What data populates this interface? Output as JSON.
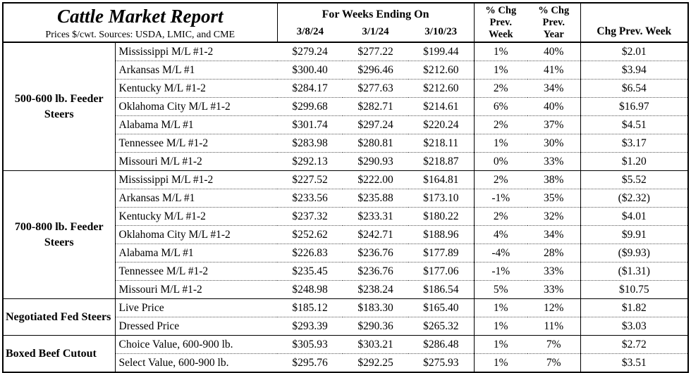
{
  "report": {
    "title": "Cattle Market Report",
    "subtitle": "Prices $/cwt. Sources: USDA, LMIC, and CME",
    "week_header": "For Weeks Ending On",
    "dates": [
      "3/8/24",
      "3/1/24",
      "3/10/23"
    ],
    "pct_week_header": "% Chg\nPrev.\nWeek",
    "pct_year_header": "% Chg\nPrev.\nYear",
    "chg_header": "Chg Prev. Week"
  },
  "groups": [
    {
      "label": "500-600 lb. Feeder Steers",
      "label_align": "center",
      "rows": [
        {
          "item": "Mississippi M/L #1-2",
          "w1": "$279.24",
          "w2": "$277.22",
          "w3": "$199.44",
          "pct_wk": "1%",
          "pct_yr": "40%",
          "chg": "$2.01"
        },
        {
          "item": "Arkansas M/L #1",
          "w1": "$300.40",
          "w2": "$296.46",
          "w3": "$212.60",
          "pct_wk": "1%",
          "pct_yr": "41%",
          "chg": "$3.94"
        },
        {
          "item": "Kentucky M/L #1-2",
          "w1": "$284.17",
          "w2": "$277.63",
          "w3": "$212.60",
          "pct_wk": "2%",
          "pct_yr": "34%",
          "chg": "$6.54"
        },
        {
          "item": "Oklahoma City M/L #1-2",
          "w1": "$299.68",
          "w2": "$282.71",
          "w3": "$214.61",
          "pct_wk": "6%",
          "pct_yr": "40%",
          "chg": "$16.97"
        },
        {
          "item": "Alabama M/L #1",
          "w1": "$301.74",
          "w2": "$297.24",
          "w3": "$220.24",
          "pct_wk": "2%",
          "pct_yr": "37%",
          "chg": "$4.51"
        },
        {
          "item": "Tennessee M/L #1-2",
          "w1": "$283.98",
          "w2": "$280.81",
          "w3": "$218.11",
          "pct_wk": "1%",
          "pct_yr": "30%",
          "chg": "$3.17"
        },
        {
          "item": "Missouri M/L #1-2",
          "w1": "$292.13",
          "w2": "$290.93",
          "w3": "$218.87",
          "pct_wk": "0%",
          "pct_yr": "33%",
          "chg": "$1.20"
        }
      ]
    },
    {
      "label": "700-800 lb. Feeder Steers",
      "label_align": "center",
      "rows": [
        {
          "item": "Mississippi M/L #1-2",
          "w1": "$227.52",
          "w2": "$222.00",
          "w3": "$164.81",
          "pct_wk": "2%",
          "pct_yr": "38%",
          "chg": "$5.52"
        },
        {
          "item": "Arkansas M/L #1",
          "w1": "$233.56",
          "w2": "$235.88",
          "w3": "$173.10",
          "pct_wk": "-1%",
          "pct_yr": "35%",
          "chg": "($2.32)"
        },
        {
          "item": "Kentucky M/L #1-2",
          "w1": "$237.32",
          "w2": "$233.31",
          "w3": "$180.22",
          "pct_wk": "2%",
          "pct_yr": "32%",
          "chg": "$4.01"
        },
        {
          "item": "Oklahoma City M/L #1-2",
          "w1": "$252.62",
          "w2": "$242.71",
          "w3": "$188.96",
          "pct_wk": "4%",
          "pct_yr": "34%",
          "chg": "$9.91"
        },
        {
          "item": "Alabama M/L #1",
          "w1": "$226.83",
          "w2": "$236.76",
          "w3": "$177.89",
          "pct_wk": "-4%",
          "pct_yr": "28%",
          "chg": "($9.93)"
        },
        {
          "item": "Tennessee M/L #1-2",
          "w1": "$235.45",
          "w2": "$236.76",
          "w3": "$177.06",
          "pct_wk": "-1%",
          "pct_yr": "33%",
          "chg": "($1.31)"
        },
        {
          "item": "Missouri M/L #1-2",
          "w1": "$248.98",
          "w2": "$238.24",
          "w3": "$186.54",
          "pct_wk": "5%",
          "pct_yr": "33%",
          "chg": "$10.75"
        }
      ]
    },
    {
      "label": "Negotiated Fed Steers",
      "label_align": "left",
      "rows": [
        {
          "item": "Live Price",
          "w1": "$185.12",
          "w2": "$183.30",
          "w3": "$165.40",
          "pct_wk": "1%",
          "pct_yr": "12%",
          "chg": "$1.82"
        },
        {
          "item": "Dressed Price",
          "w1": "$293.39",
          "w2": "$290.36",
          "w3": "$265.32",
          "pct_wk": "1%",
          "pct_yr": "11%",
          "chg": "$3.03"
        }
      ]
    },
    {
      "label": "Boxed Beef Cutout",
      "label_align": "left",
      "rows": [
        {
          "item": "Choice Value, 600-900 lb.",
          "w1": "$305.93",
          "w2": "$303.21",
          "w3": "$286.48",
          "pct_wk": "1%",
          "pct_yr": "7%",
          "chg": "$2.72"
        },
        {
          "item": "Select Value, 600-900 lb.",
          "w1": "$295.76",
          "w2": "$292.25",
          "w3": "$275.93",
          "pct_wk": "1%",
          "pct_yr": "7%",
          "chg": "$3.51"
        }
      ]
    }
  ]
}
